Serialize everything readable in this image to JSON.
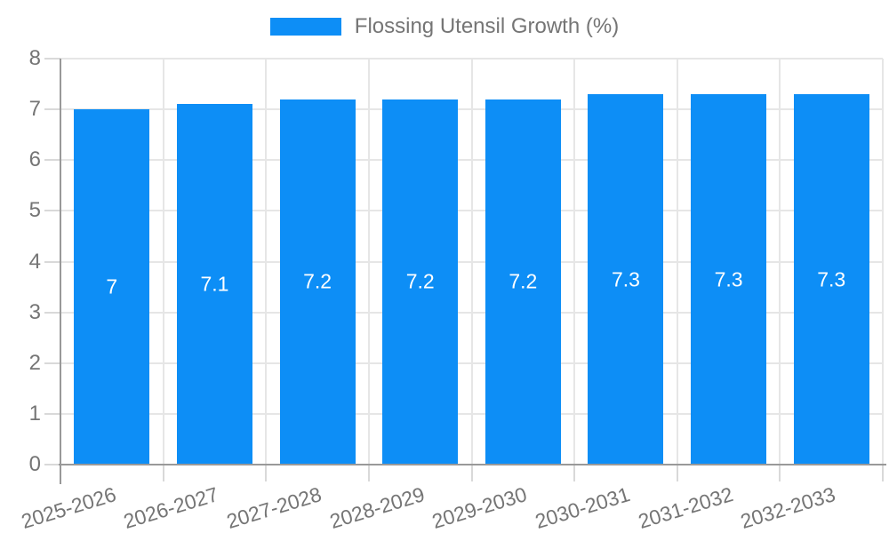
{
  "chart_data": {
    "type": "bar",
    "legend_label": "Flossing Utensil Growth (%)",
    "legend_position": "top",
    "categories": [
      "2025-2026",
      "2026-2027",
      "2027-2028",
      "2028-2029",
      "2029-2030",
      "2030-2031",
      "2031-2032",
      "2032-2033"
    ],
    "values": [
      7,
      7.1,
      7.2,
      7.2,
      7.2,
      7.3,
      7.3,
      7.3
    ],
    "bar_labels": [
      "7",
      "7.1",
      "7.2",
      "7.2",
      "7.2",
      "7.3",
      "7.3",
      "7.3"
    ],
    "xlabel": "",
    "ylabel": "",
    "ylim": [
      0,
      8
    ],
    "yticks": [
      0,
      1,
      2,
      3,
      4,
      5,
      6,
      7,
      8
    ],
    "grid": true,
    "colors": {
      "bar": "#0d8ef6",
      "bar_label": "#ffffff",
      "grid": "#e6e6e6",
      "axis": "#999999",
      "tick": "#d9d9d9",
      "text": "#757575",
      "background": "#ffffff"
    }
  }
}
